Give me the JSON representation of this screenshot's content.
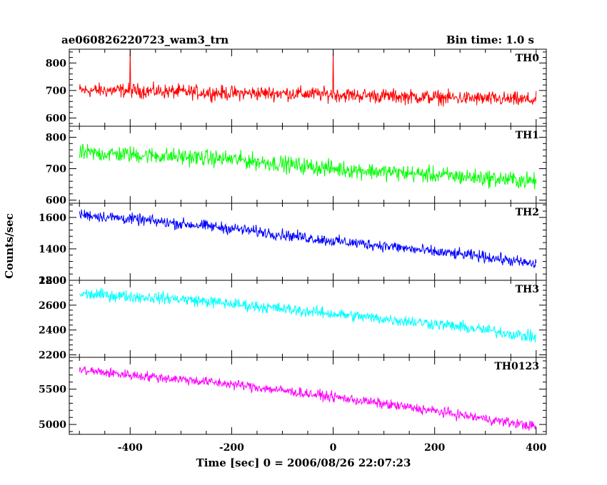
{
  "header": {
    "title": "ae060826220723_wam3_trn",
    "bin_time": "Bin time: 1.0 s"
  },
  "chart_data": {
    "type": "line",
    "title": "ae060826220723_wam3_trn",
    "subtitle": "Bin time: 1.0 s",
    "xlabel": "Time [sec] 0 = 2006/08/26 22:07:23",
    "ylabel": "Counts/sec",
    "xlim": [
      -520,
      420
    ],
    "xticks": [
      -400,
      -200,
      0,
      200,
      400
    ],
    "grid": false,
    "panels": [
      {
        "name": "TH0",
        "color": "#ff0000",
        "ylim": [
          570,
          850
        ],
        "yticks": [
          600,
          700,
          800
        ],
        "x": [
          -500,
          -400,
          -300,
          -200,
          -100,
          0,
          100,
          200,
          300,
          400
        ],
        "y": [
          700,
          700,
          695,
          690,
          690,
          685,
          680,
          675,
          670,
          665
        ],
        "noise_amplitude": 28,
        "spikes": [
          {
            "x": -400,
            "y": 850
          },
          {
            "x": 0,
            "y": 850
          }
        ]
      },
      {
        "name": "TH1",
        "color": "#00ff00",
        "ylim": [
          590,
          835
        ],
        "yticks": [
          600,
          700,
          800
        ],
        "x": [
          -500,
          -400,
          -300,
          -200,
          -100,
          0,
          100,
          200,
          300,
          400
        ],
        "y": [
          750,
          745,
          738,
          730,
          715,
          700,
          690,
          680,
          670,
          660
        ],
        "noise_amplitude": 28,
        "spikes": []
      },
      {
        "name": "TH2",
        "color": "#0000ff",
        "ylim": [
          1200,
          1690
        ],
        "yticks": [
          1200,
          1400,
          1600
        ],
        "x": [
          -500,
          -400,
          -300,
          -200,
          -100,
          0,
          100,
          200,
          300,
          400
        ],
        "y": [
          1620,
          1590,
          1560,
          1530,
          1490,
          1450,
          1420,
          1380,
          1350,
          1300
        ],
        "noise_amplitude": 38,
        "spikes": []
      },
      {
        "name": "TH3",
        "color": "#00ffff",
        "ylim": [
          2180,
          2800
        ],
        "yticks": [
          2200,
          2400,
          2600,
          2800
        ],
        "x": [
          -500,
          -400,
          -300,
          -200,
          -100,
          0,
          100,
          200,
          300,
          400
        ],
        "y": [
          2690,
          2670,
          2650,
          2610,
          2570,
          2530,
          2490,
          2450,
          2400,
          2340
        ],
        "noise_amplitude": 50,
        "spikes": []
      },
      {
        "name": "TH0123",
        "color": "#ff00ff",
        "ylim": [
          4860,
          5950
        ],
        "yticks": [
          5000,
          5500
        ],
        "x": [
          -500,
          -400,
          -300,
          -200,
          -100,
          0,
          100,
          200,
          300,
          400
        ],
        "y": [
          5770,
          5700,
          5640,
          5570,
          5480,
          5390,
          5290,
          5190,
          5080,
          4970
        ],
        "noise_amplitude": 75,
        "spikes": []
      }
    ]
  }
}
